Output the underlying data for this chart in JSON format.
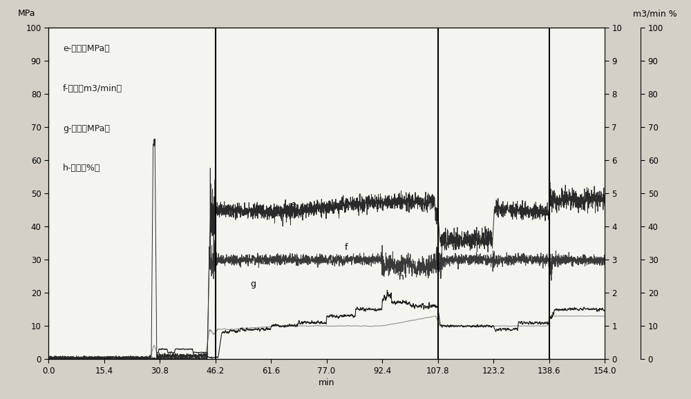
{
  "left_ylabel": "MPa",
  "right_ylabel": "m3/min %",
  "xlabel": "min",
  "xlim": [
    0.0,
    154.0
  ],
  "ylim_left": [
    0,
    100
  ],
  "xticks": [
    0.0,
    15.4,
    30.8,
    46.2,
    61.6,
    77.0,
    92.4,
    107.8,
    123.2,
    138.6,
    154.0
  ],
  "yticks_left": [
    0,
    10,
    20,
    30,
    40,
    50,
    60,
    70,
    80,
    90,
    100
  ],
  "yticks_right_flow": [
    0,
    1,
    2,
    3,
    4,
    5,
    6,
    7,
    8,
    9,
    10
  ],
  "yticks_right_pct": [
    0,
    10,
    20,
    30,
    40,
    50,
    60,
    70,
    80,
    90,
    100
  ],
  "legend_labels": [
    "e-油压（MPa）",
    "f-排量（m3/min）",
    "g-套压（MPa）",
    "h-砂比（%）"
  ],
  "bg_color": "#d4d0c8",
  "plot_bg_color": "#f5f5f0",
  "vlines": [
    46.2,
    107.8,
    138.6
  ],
  "figsize": [
    10.0,
    5.78
  ],
  "dpi": 100
}
